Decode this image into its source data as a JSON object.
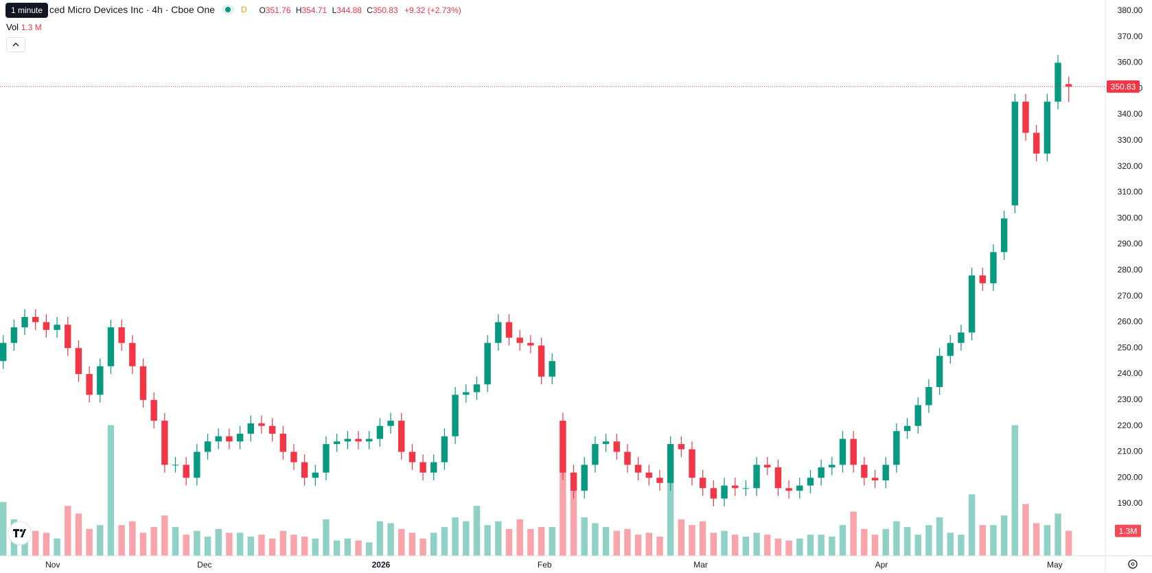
{
  "header": {
    "tooltip": "1 minute",
    "symbol": "ced Micro Devices Inc · 4h · Cboe One",
    "badge": "D",
    "o": "O",
    "h": "H",
    "l": "L",
    "c": "C",
    "change": "+9.32 (+2.73%)",
    "vol_label": "Vol",
    "vol_value": "1.3 M"
  },
  "chart_data": {
    "type": "candlestick",
    "open": [
      245,
      252,
      258,
      262,
      260,
      257,
      259,
      250,
      240,
      232,
      243,
      258,
      252,
      243,
      230,
      222,
      205,
      205,
      200,
      210,
      214,
      216,
      214,
      217,
      221,
      220,
      217,
      210,
      206,
      200,
      202,
      213,
      214,
      215,
      214,
      215,
      220,
      222,
      210,
      206,
      202,
      206,
      216,
      232,
      233,
      236,
      252,
      260,
      254,
      252,
      251,
      239,
      222,
      202,
      195,
      205,
      213,
      214,
      210,
      205,
      202,
      200,
      198,
      213,
      211,
      200,
      196,
      192,
      197,
      196,
      196,
      205,
      204,
      196,
      195,
      197,
      200,
      204,
      205,
      215,
      205,
      200,
      199,
      205,
      218,
      220,
      228,
      235,
      247,
      252,
      256,
      278,
      275,
      287,
      305,
      345,
      333,
      325,
      345,
      351.76
    ],
    "high": [
      255,
      261,
      265,
      265,
      263,
      262,
      262,
      253,
      243,
      246,
      261,
      261,
      255,
      246,
      233,
      225,
      208,
      208,
      213,
      217,
      219,
      219,
      220,
      224,
      224,
      223,
      220,
      213,
      209,
      205,
      216,
      217,
      218,
      218,
      218,
      223,
      225,
      225,
      213,
      209,
      209,
      219,
      235,
      236,
      239,
      255,
      263,
      263,
      257,
      255,
      254,
      248,
      225,
      205,
      208,
      216,
      217,
      217,
      213,
      208,
      205,
      203,
      216,
      216,
      214,
      203,
      199,
      200,
      200,
      199,
      208,
      208,
      207,
      199,
      200,
      203,
      207,
      208,
      218,
      218,
      208,
      203,
      208,
      221,
      223,
      231,
      238,
      250,
      255,
      259,
      281,
      281,
      290,
      303,
      348,
      348,
      336,
      348,
      363,
      354.71
    ],
    "low": [
      242,
      249,
      255,
      257,
      254,
      254,
      247,
      237,
      229,
      229,
      240,
      249,
      240,
      227,
      219,
      202,
      202,
      197,
      197,
      207,
      211,
      211,
      211,
      214,
      217,
      214,
      207,
      203,
      197,
      197,
      199,
      210,
      211,
      211,
      211,
      212,
      217,
      207,
      203,
      199,
      199,
      203,
      213,
      229,
      230,
      233,
      249,
      251,
      249,
      248,
      236,
      236,
      199,
      192,
      192,
      202,
      210,
      207,
      202,
      199,
      197,
      195,
      195,
      208,
      197,
      193,
      189,
      189,
      193,
      193,
      193,
      201,
      193,
      192,
      192,
      194,
      197,
      201,
      202,
      202,
      197,
      196,
      196,
      202,
      215,
      217,
      225,
      232,
      244,
      249,
      253,
      272,
      272,
      284,
      302,
      330,
      322,
      322,
      342,
      344.88
    ],
    "close": [
      252,
      258,
      262,
      260,
      257,
      259,
      250,
      240,
      232,
      243,
      258,
      252,
      243,
      230,
      222,
      205,
      205,
      200,
      210,
      214,
      216,
      214,
      217,
      221,
      220,
      217,
      210,
      206,
      200,
      202,
      213,
      214,
      215,
      214,
      215,
      220,
      222,
      210,
      206,
      202,
      206,
      216,
      232,
      233,
      236,
      252,
      260,
      254,
      252,
      251,
      239,
      245,
      202,
      195,
      205,
      213,
      214,
      210,
      205,
      202,
      200,
      198,
      213,
      211,
      200,
      196,
      192,
      197,
      196,
      196,
      205,
      204,
      196,
      195,
      197,
      200,
      204,
      205,
      215,
      205,
      200,
      199,
      205,
      218,
      220,
      228,
      235,
      247,
      252,
      256,
      278,
      275,
      287,
      300,
      345,
      333,
      325,
      345,
      360,
      350.83
    ],
    "volume": [
      2.8,
      1.9,
      1.5,
      1.3,
      1.2,
      0.9,
      2.6,
      2.2,
      1.4,
      1.6,
      6.8,
      1.6,
      1.8,
      1.2,
      1.5,
      2.1,
      1.5,
      1.1,
      1.3,
      1.0,
      1.4,
      1.2,
      1.2,
      1.0,
      1.1,
      0.9,
      1.3,
      1.1,
      1.0,
      0.9,
      1.9,
      0.8,
      0.9,
      0.8,
      0.7,
      1.8,
      1.7,
      1.4,
      1.2,
      0.9,
      1.2,
      1.5,
      2.0,
      1.8,
      2.6,
      1.6,
      1.8,
      1.4,
      1.9,
      1.4,
      1.5,
      1.5,
      5.5,
      3.4,
      2.0,
      1.7,
      1.5,
      1.3,
      1.4,
      1.1,
      1.2,
      1.0,
      3.8,
      1.9,
      1.6,
      1.8,
      1.2,
      1.3,
      1.1,
      1.0,
      1.2,
      1.1,
      0.9,
      0.8,
      0.9,
      1.1,
      1.1,
      1.0,
      1.6,
      2.3,
      1.4,
      1.1,
      1.4,
      1.8,
      1.5,
      1.1,
      1.6,
      2.0,
      1.2,
      1.1,
      3.2,
      1.6,
      1.6,
      2.1,
      6.8,
      2.7,
      1.7,
      1.6,
      2.2,
      1.3
    ],
    "volume_last_label": "1.3M",
    "up_color": "#089981",
    "down_color": "#f23645",
    "xlim": [
      -0.3,
      102.4
    ],
    "xticks": [
      {
        "value": 4.6,
        "label": "Nov"
      },
      {
        "value": 18.7,
        "label": "Dec"
      },
      {
        "value": 35.1,
        "label": "2026"
      },
      {
        "value": 50.3,
        "label": "Feb"
      },
      {
        "value": 64.8,
        "label": "Mar"
      },
      {
        "value": 81.6,
        "label": "Apr"
      },
      {
        "value": 97.7,
        "label": "May"
      }
    ],
    "ylim": [
      169.9,
      384.2
    ],
    "vlim": [
      0,
      7.5
    ],
    "yticks": [
      {
        "value": 190,
        "label": "190.00"
      },
      {
        "value": 200,
        "label": "200.00"
      },
      {
        "value": 210,
        "label": "210.00"
      },
      {
        "value": 220,
        "label": "220.00"
      },
      {
        "value": 230,
        "label": "230.00"
      },
      {
        "value": 240,
        "label": "240.00"
      },
      {
        "value": 250,
        "label": "250.00"
      },
      {
        "value": 260,
        "label": "260.00"
      },
      {
        "value": 270,
        "label": "270.00"
      },
      {
        "value": 280,
        "label": "280.00"
      },
      {
        "value": 290,
        "label": "290.00"
      },
      {
        "value": 300,
        "label": "300.00"
      },
      {
        "value": 310,
        "label": "310.00"
      },
      {
        "value": 320,
        "label": "320.00"
      },
      {
        "value": 330,
        "label": "330.00"
      },
      {
        "value": 340,
        "label": "340.00"
      },
      {
        "value": 350,
        "label": "350.00"
      },
      {
        "value": 360,
        "label": "360.00"
      },
      {
        "value": 370,
        "label": "370.00"
      },
      {
        "value": 380,
        "label": "380.00"
      }
    ],
    "grid": true
  }
}
